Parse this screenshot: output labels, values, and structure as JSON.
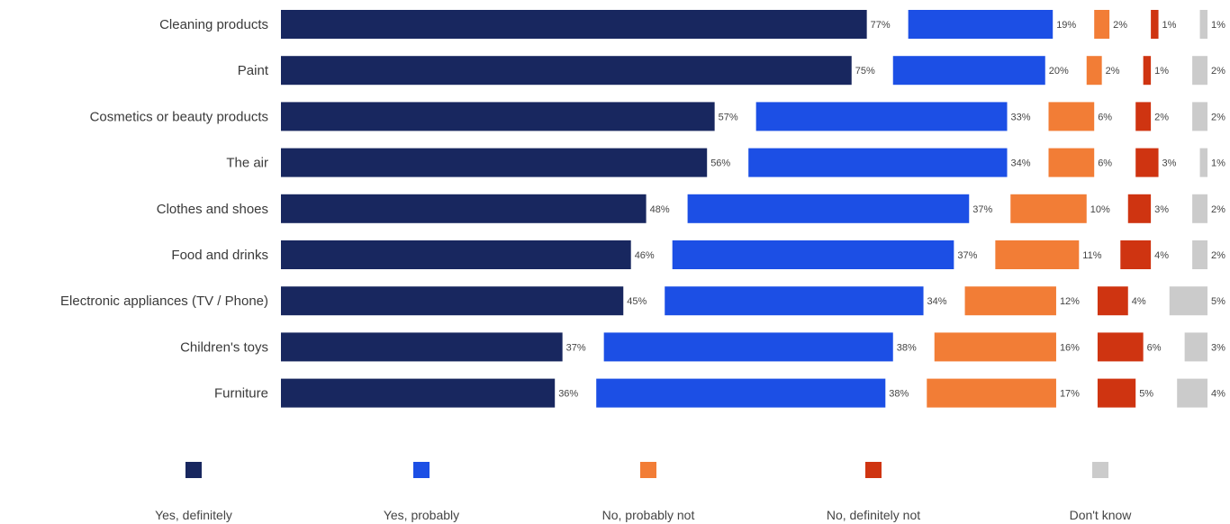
{
  "chart_data": {
    "type": "bar",
    "stacked": true,
    "orientation": "horizontal",
    "categories": [
      "Cleaning products",
      "Paint",
      "Cosmetics or beauty products",
      "The air",
      "Clothes and shoes",
      "Food and drinks",
      "Electronic appliances (TV / Phone)",
      "Children's toys",
      "Furniture"
    ],
    "series": [
      {
        "name": "Yes, definitely",
        "color": "#18275f",
        "values": [
          77,
          75,
          57,
          56,
          48,
          46,
          45,
          37,
          36
        ]
      },
      {
        "name": "Yes, probably",
        "color": "#1c4fe5",
        "values": [
          19,
          20,
          33,
          34,
          37,
          37,
          34,
          38,
          38
        ]
      },
      {
        "name": "No, probably not",
        "color": "#f27d36",
        "values": [
          2,
          2,
          6,
          6,
          10,
          11,
          12,
          16,
          17
        ]
      },
      {
        "name": "No, definitely not",
        "color": "#cf3411",
        "values": [
          1,
          1,
          2,
          3,
          3,
          4,
          4,
          6,
          5
        ]
      },
      {
        "name": "Don't know",
        "color": "#cbcbcb",
        "values": [
          1,
          2,
          2,
          1,
          2,
          2,
          5,
          3,
          4
        ]
      }
    ],
    "value_suffix": "%",
    "legend_position": "bottom",
    "grid": false
  }
}
